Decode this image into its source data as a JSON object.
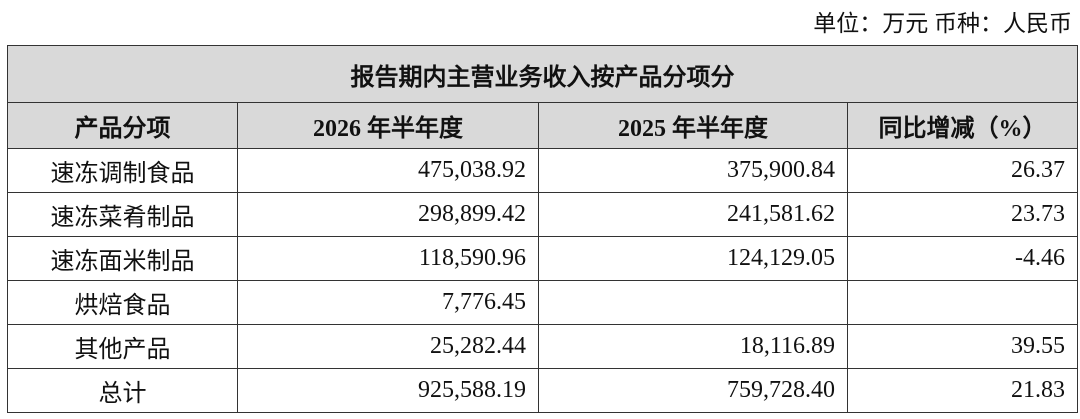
{
  "unit_note": "单位：万元 币种：人民币",
  "table": {
    "title": "报告期内主营业务收入按产品分项分",
    "header": [
      "产品分项",
      "2026 年半年度",
      "2025 年半年度",
      "同比增减（%）"
    ],
    "rows": [
      [
        "速冻调制食品",
        "475,038.92",
        "375,900.84",
        "26.37"
      ],
      [
        "速冻菜肴制品",
        "298,899.42",
        "241,581.62",
        "23.73"
      ],
      [
        "速冻面米制品",
        "118,590.96",
        "124,129.05",
        "-4.46"
      ],
      [
        "烘焙食品",
        "7,776.45",
        null,
        null
      ],
      [
        "其他产品",
        "25,282.44",
        "18,116.89",
        "39.55"
      ],
      [
        "总计",
        "925,588.19",
        "759,728.40",
        "21.83"
      ]
    ]
  }
}
